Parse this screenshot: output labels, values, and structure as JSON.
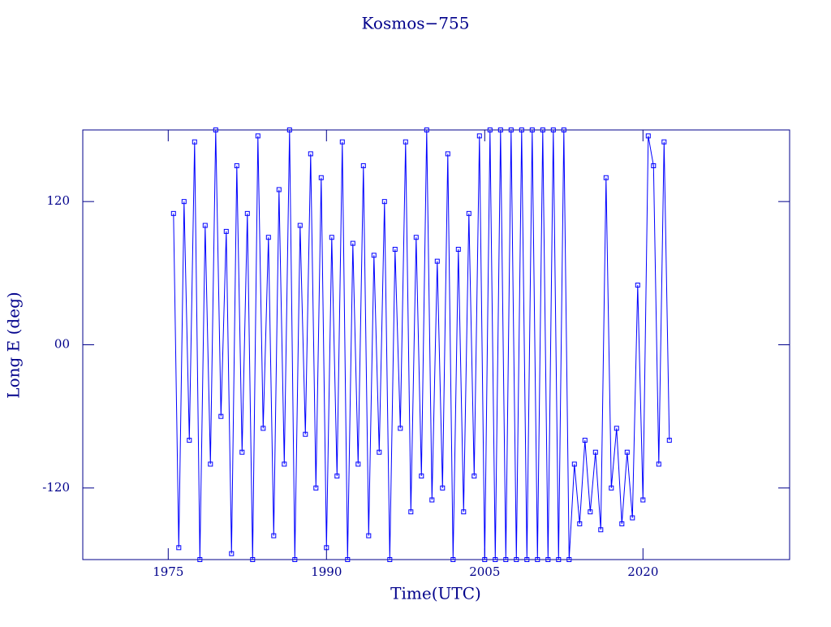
{
  "chart_data": {
    "type": "line",
    "title": "Kosmos−755",
    "xlabel": "Time(UTC)",
    "ylabel": "Long E (deg)",
    "x": [
      1975.5,
      1976,
      1976.5,
      1977,
      1977.5,
      1978,
      1978.5,
      1979,
      1979.5,
      1980,
      1980.5,
      1981,
      1981.5,
      1982,
      1982.5,
      1983,
      1983.5,
      1984,
      1984.5,
      1985,
      1985.5,
      1986,
      1986.5,
      1987,
      1987.5,
      1988,
      1988.5,
      1989,
      1989.5,
      1990,
      1990.5,
      1991,
      1991.5,
      1992,
      1992.5,
      1993,
      1993.5,
      1994,
      1994.5,
      1995,
      1995.5,
      1996,
      1996.5,
      1997,
      1997.5,
      1998,
      1998.5,
      1999,
      1999.5,
      2000,
      2000.5,
      2001,
      2001.5,
      2002,
      2002.5,
      2003,
      2003.5,
      2004,
      2004.5,
      2005,
      2005.5,
      2006,
      2006.5,
      2007,
      2007.5,
      2008,
      2008.5,
      2009,
      2009.5,
      2010,
      2010.5,
      2011,
      2011.5,
      2012,
      2012.5,
      2013,
      2013.5,
      2014,
      2014.5,
      2015,
      2015.5,
      2016,
      2016.5,
      2017,
      2017.5,
      2018,
      2018.5,
      2019,
      2019.5,
      2020,
      2020.5,
      2021,
      2021.5,
      2022,
      2022.5
    ],
    "series": [
      {
        "color": "#0000ff",
        "values": [
          110,
          -170,
          120,
          -80,
          170,
          -180,
          100,
          -100,
          180,
          -60,
          95,
          -175,
          150,
          -90,
          110,
          -180,
          175,
          -70,
          90,
          -160,
          130,
          -100,
          180,
          -180,
          100,
          -75,
          160,
          -120,
          140,
          -170,
          90,
          -110,
          170,
          -180,
          85,
          -100,
          150,
          -160,
          75,
          -90,
          120,
          -180,
          80,
          -70,
          170,
          -140,
          90,
          -110,
          180,
          -130,
          70,
          -120,
          160,
          -180,
          80,
          -140,
          110,
          -110,
          175,
          -180,
          180,
          -180,
          180,
          -180,
          180,
          -180,
          180,
          -180,
          180,
          -180,
          180,
          -180,
          180,
          -180,
          180,
          -180,
          -100,
          -150,
          -80,
          -140,
          -90,
          -155,
          140,
          -120,
          -70,
          -150,
          -90,
          -145,
          50,
          -130,
          175,
          150,
          -100,
          170,
          -80
        ]
      }
    ],
    "xlim": [
      1966.9,
      2033.9
    ],
    "xticks": [
      1975,
      1990,
      2005,
      2020
    ],
    "ylim": [
      -180,
      180
    ],
    "yticks": [
      -120,
      {
        "value": 0,
        "label": "00"
      },
      120
    ]
  }
}
